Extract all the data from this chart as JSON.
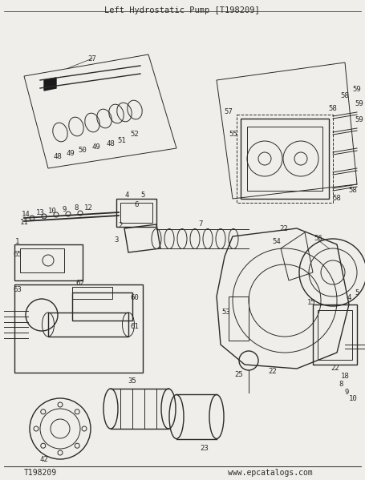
{
  "title": "Left Hydrostatic Pump [T198209]",
  "bottom_left": "T198209",
  "bottom_right": "www.epcatalogs.com",
  "bg_color": "#f0eeea",
  "line_color": "#2a2a2a",
  "title_fontsize": 7.5,
  "footer_fontsize": 7,
  "label_fontsize": 6.5,
  "fig_width": 4.55,
  "fig_height": 5.99,
  "dpi": 100
}
